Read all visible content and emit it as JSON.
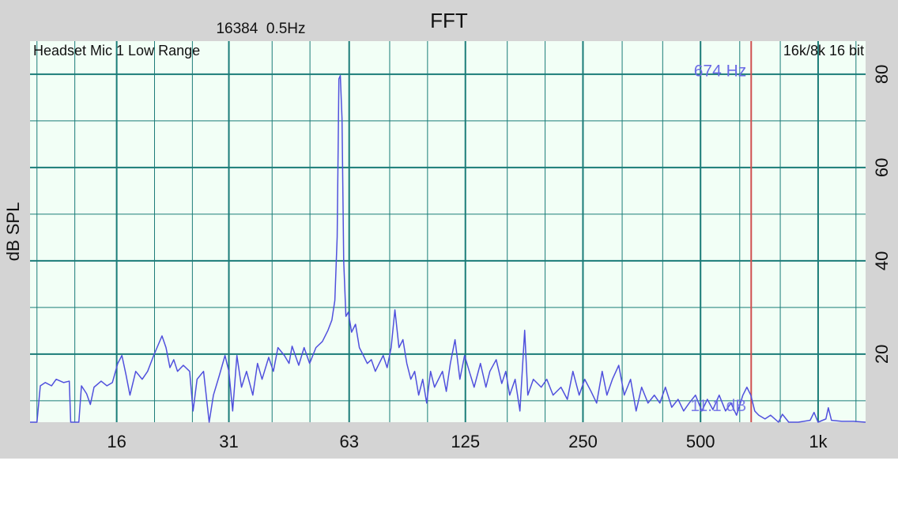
{
  "chart_data": {
    "type": "line",
    "title": "FFT",
    "subtitle": "16384  0.5Hz",
    "source_label": "Headset Mic 1 Low Range",
    "format_label": "16k/8k 16 bit",
    "y_label": "dB SPL",
    "xscale": "log",
    "yaxis_side": "right",
    "grid": true,
    "color": "#5050dd",
    "xlim": [
      9.6,
      1323
    ],
    "ylim": [
      5.4,
      87.1
    ],
    "xticks": [
      16,
      31,
      63,
      125,
      250,
      500,
      {
        "value": 1000,
        "label": "1k"
      }
    ],
    "xgrid_minor": [
      10,
      12.5,
      20,
      25,
      40,
      50,
      80,
      100,
      160,
      200,
      315,
      400,
      630,
      800,
      1250
    ],
    "yticks": [
      20,
      40,
      60,
      80
    ],
    "yticks_minor": [
      10,
      30,
      50,
      70
    ],
    "cursor": {
      "value": 674,
      "label": "674 Hz",
      "color": "#d05050"
    },
    "cursor_level": {
      "value": 11.1,
      "label": "11.1 dB"
    },
    "x": [
      9.6,
      10.0,
      10.2,
      10.5,
      10.9,
      11.2,
      11.7,
      12.1,
      12.2,
      12.8,
      13.0,
      13.4,
      13.7,
      14.0,
      14.6,
      15.1,
      15.6,
      16.1,
      16.5,
      16.9,
      17.3,
      17.9,
      18.6,
      19.2,
      19.9,
      20.9,
      21.4,
      21.9,
      22.4,
      22.9,
      23.7,
      24.6,
      25.1,
      25.7,
      26.7,
      27.6,
      28.3,
      29.3,
      30.3,
      31.0,
      31.7,
      32.5,
      33.4,
      34.4,
      35.7,
      36.7,
      37.7,
      39.2,
      40.3,
      41.4,
      43.0,
      44.2,
      45.0,
      46.8,
      48.3,
      49.9,
      51.8,
      53.8,
      55.6,
      56.9,
      57.9,
      58.7,
      59.3,
      59.8,
      60.4,
      61.0,
      61.8,
      62.7,
      63.9,
      65.4,
      66.9,
      68.5,
      70.1,
      71.8,
      73.5,
      75.2,
      77.0,
      78.8,
      80.7,
      82.5,
      84.5,
      86.5,
      88.5,
      90.6,
      92.7,
      94.9,
      97.2,
      99.5,
      101.8,
      104.2,
      109.2,
      111.7,
      114.4,
      117.6,
      121.0,
      124.4,
      127.9,
      131.6,
      136.6,
      141.1,
      144.4,
      149.9,
      154.9,
      158.6,
      162.3,
      167.6,
      172.4,
      177.3,
      180.6,
      186.6,
      195.5,
      202.0,
      209.6,
      219.6,
      228.0,
      235.6,
      244.5,
      252.6,
      262.2,
      271.0,
      280.0,
      287.9,
      297.4,
      308.7,
      318.9,
      331.0,
      342.0,
      353.3,
      366.8,
      380.8,
      393.4,
      406.4,
      421.9,
      438.0,
      452.6,
      467.6,
      485.3,
      503.8,
      520.5,
      537.7,
      558.1,
      579.4,
      598.4,
      618.2,
      641.8,
      657.1,
      672.5,
      688.3,
      704.6,
      731.2,
      755.8,
      791.8,
      810.2,
      841.0,
      889.6,
      954.2,
      976.3,
      999.5,
      1047,
      1062,
      1082,
      1150,
      1233,
      1323
    ],
    "values": [
      5.4,
      5.4,
      13.2,
      13.9,
      13.2,
      14.6,
      13.9,
      14.2,
      5.4,
      5.4,
      13.2,
      11.5,
      9.2,
      12.9,
      14.2,
      13.2,
      13.9,
      18.0,
      19.7,
      15.6,
      11.2,
      16.3,
      14.6,
      16.3,
      19.7,
      23.9,
      21.4,
      17.1,
      18.8,
      16.3,
      17.6,
      16.3,
      7.8,
      14.6,
      16.3,
      5.4,
      11.2,
      15.4,
      19.7,
      16.3,
      7.8,
      19.7,
      12.9,
      16.3,
      11.2,
      18.0,
      14.6,
      19.3,
      16.3,
      21.4,
      19.7,
      18.0,
      21.7,
      17.6,
      21.4,
      18.0,
      21.4,
      22.7,
      25.1,
      27.3,
      31.5,
      45.1,
      79.0,
      79.7,
      70.5,
      40.0,
      28.1,
      29.0,
      24.7,
      26.4,
      21.4,
      19.7,
      18.0,
      18.8,
      16.3,
      18.0,
      19.7,
      17.1,
      21.4,
      29.5,
      21.4,
      23.1,
      18.0,
      14.6,
      16.3,
      11.2,
      14.6,
      9.5,
      16.3,
      12.9,
      16.3,
      12.0,
      18.0,
      23.1,
      14.6,
      19.7,
      16.3,
      12.9,
      18.0,
      12.9,
      16.3,
      18.8,
      13.7,
      16.3,
      11.2,
      14.6,
      7.8,
      25.1,
      11.2,
      14.6,
      12.9,
      14.6,
      11.2,
      12.9,
      10.3,
      16.3,
      11.2,
      14.6,
      12.0,
      9.5,
      16.3,
      11.2,
      14.6,
      17.6,
      11.2,
      14.6,
      7.8,
      12.9,
      9.5,
      11.2,
      9.5,
      12.9,
      8.6,
      10.3,
      7.8,
      9.5,
      11.2,
      7.8,
      10.3,
      8.1,
      11.2,
      7.8,
      9.5,
      6.9,
      11.2,
      12.9,
      11.2,
      7.8,
      6.9,
      6.1,
      6.9,
      5.4,
      7.1,
      5.4,
      5.4,
      5.8,
      7.5,
      5.4,
      6.1,
      8.5,
      5.8,
      5.6,
      5.6,
      5.4
    ]
  }
}
